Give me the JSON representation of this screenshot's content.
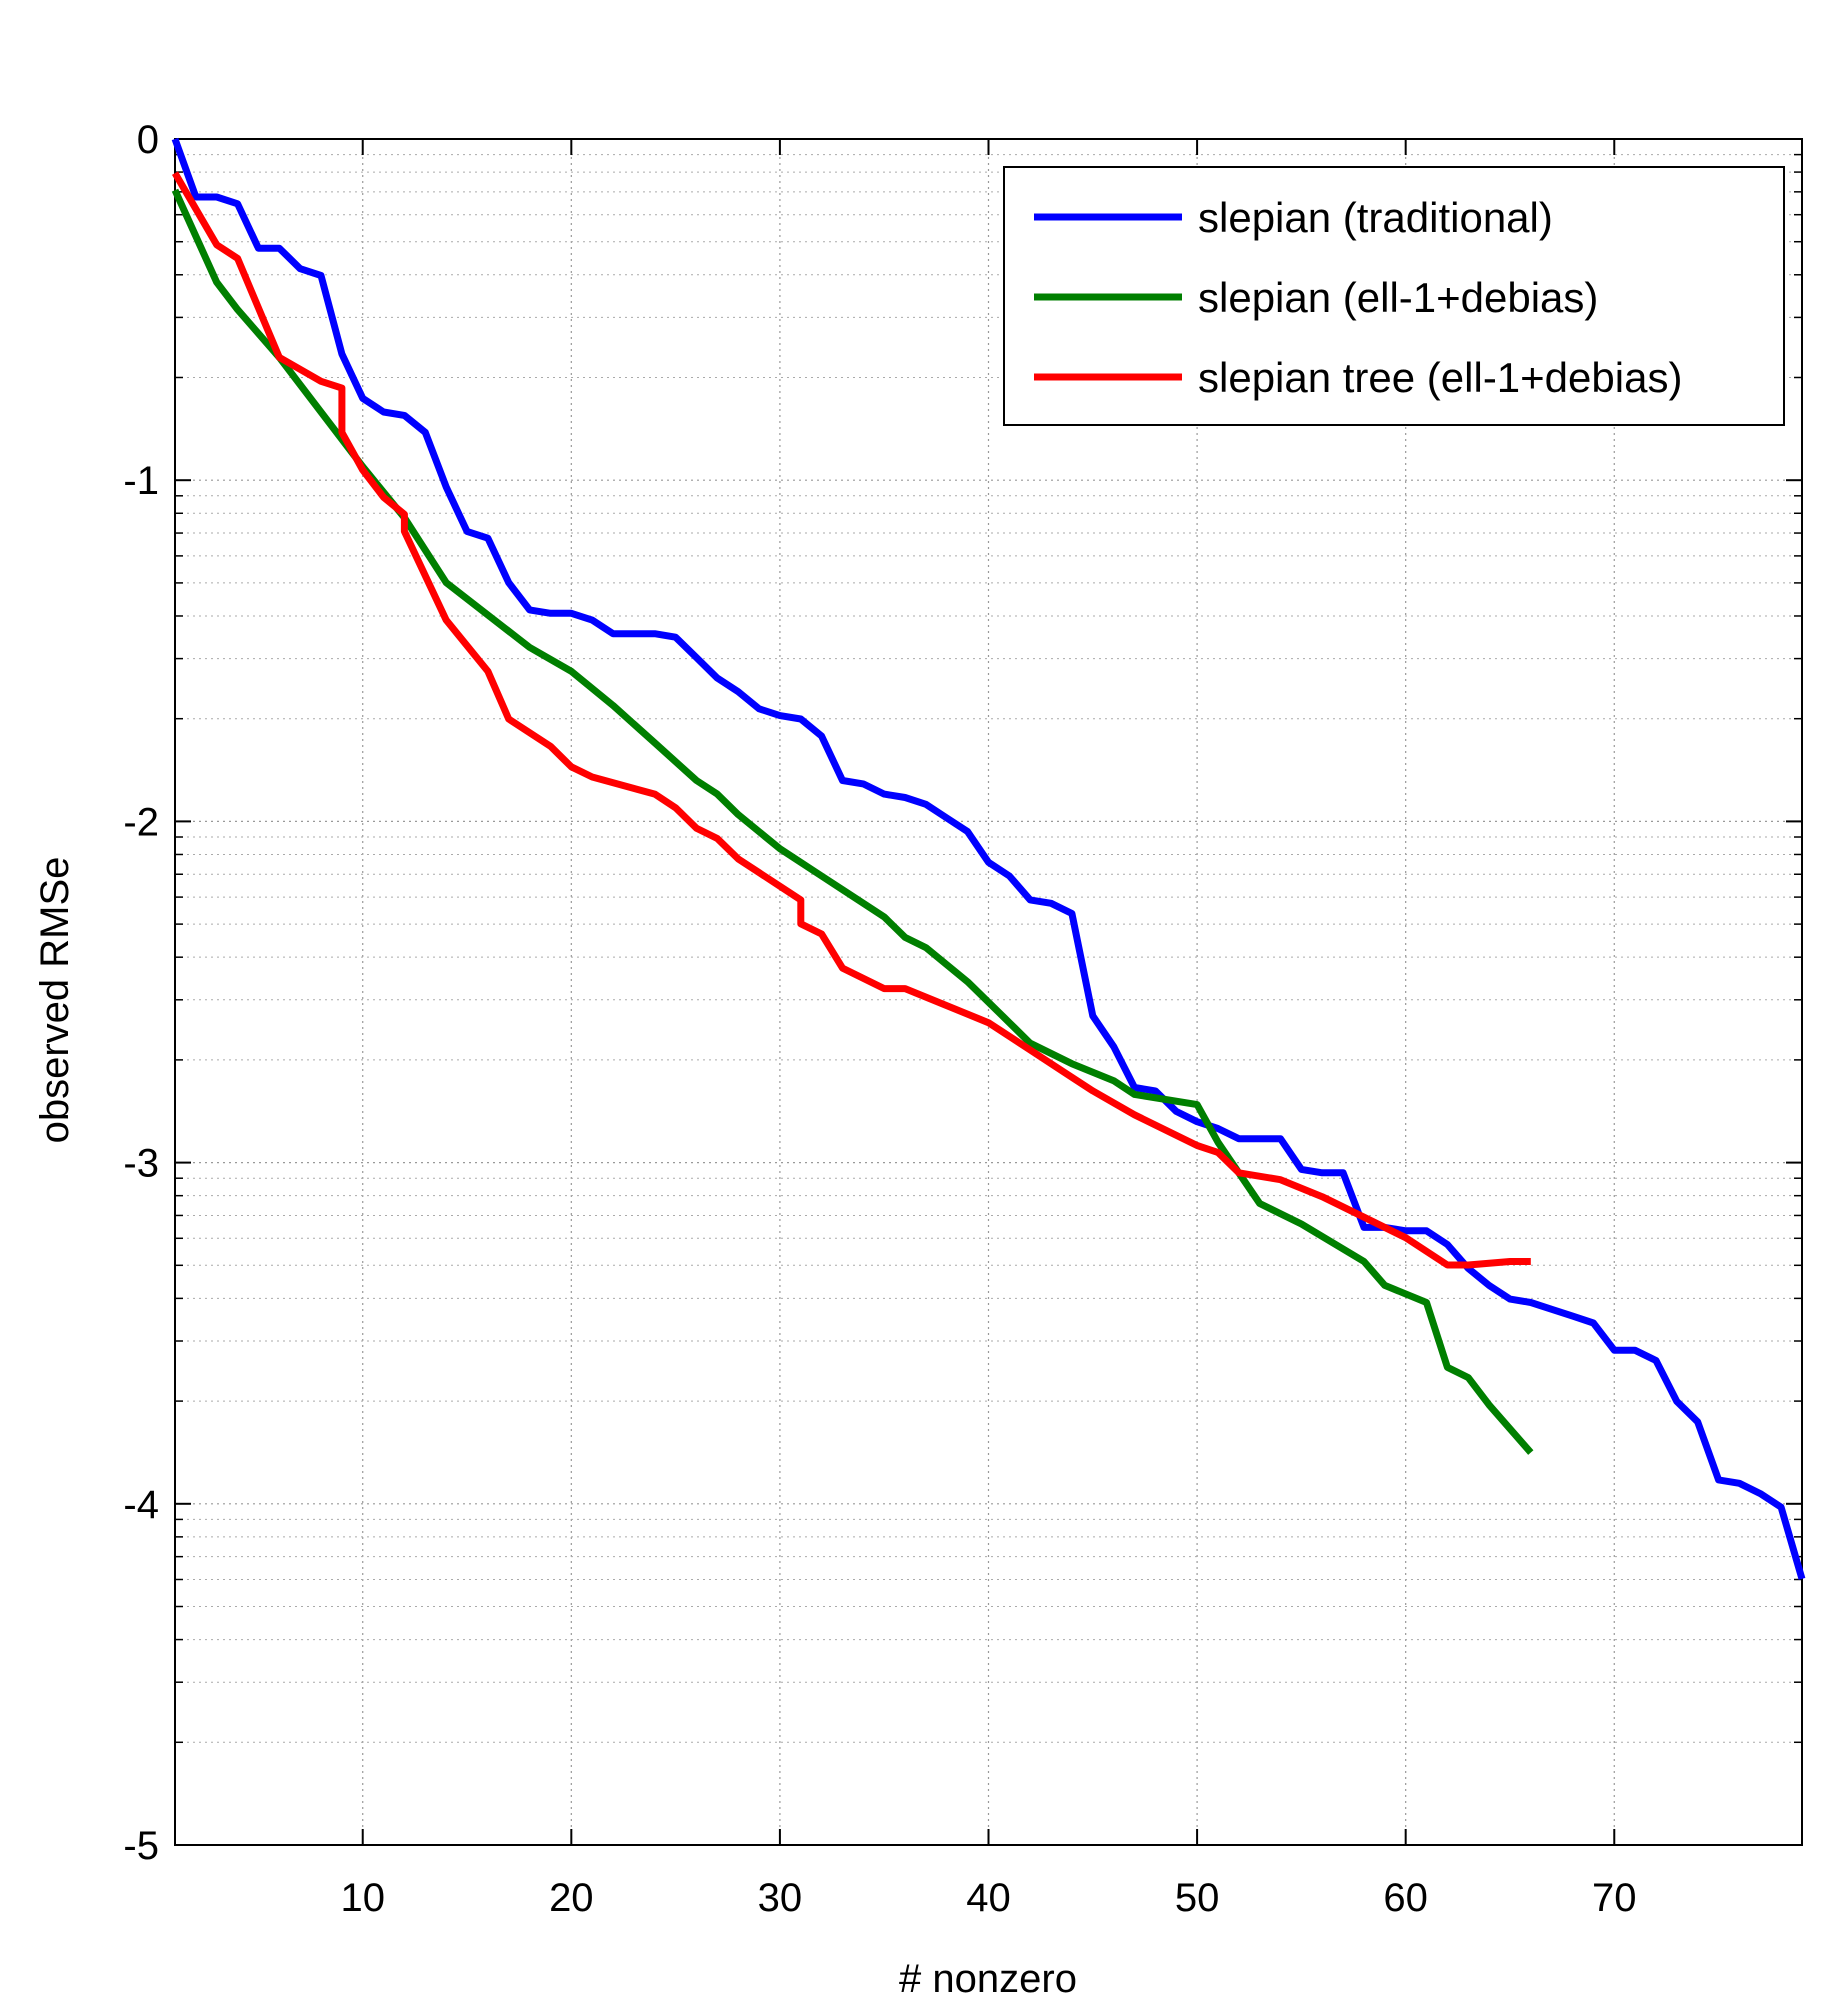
{
  "chart_data": {
    "type": "line",
    "title": "",
    "xlabel": "# nonzero",
    "ylabel": "observed RMSe",
    "xlim": [
      1,
      79
    ],
    "ylim": [
      -5,
      0
    ],
    "xticks": [
      10,
      20,
      30,
      40,
      50,
      60,
      70
    ],
    "yticks": [
      0,
      -1,
      -2,
      -3,
      -4,
      -5
    ],
    "y_scale": "log10",
    "grid": true,
    "legend_position": "top-right",
    "series": [
      {
        "name": "slepian (traditional)",
        "color": "#0000ff",
        "points": [
          [
            1,
            0
          ],
          [
            2,
            -0.17
          ],
          [
            3,
            -0.17
          ],
          [
            4,
            -0.19
          ],
          [
            5,
            -0.32
          ],
          [
            6,
            -0.32
          ],
          [
            7,
            -0.38
          ],
          [
            8,
            -0.4
          ],
          [
            9,
            -0.63
          ],
          [
            10,
            -0.76
          ],
          [
            11,
            -0.8
          ],
          [
            12,
            -0.81
          ],
          [
            13,
            -0.86
          ],
          [
            14,
            -1.02
          ],
          [
            15,
            -1.15
          ],
          [
            16,
            -1.17
          ],
          [
            17,
            -1.3
          ],
          [
            18,
            -1.38
          ],
          [
            19,
            -1.39
          ],
          [
            20,
            -1.39
          ],
          [
            21,
            -1.41
          ],
          [
            22,
            -1.45
          ],
          [
            23,
            -1.45
          ],
          [
            24,
            -1.45
          ],
          [
            25,
            -1.46
          ],
          [
            26,
            -1.52
          ],
          [
            27,
            -1.58
          ],
          [
            28,
            -1.62
          ],
          [
            29,
            -1.67
          ],
          [
            30,
            -1.69
          ],
          [
            31,
            -1.7
          ],
          [
            32,
            -1.75
          ],
          [
            33,
            -1.88
          ],
          [
            34,
            -1.89
          ],
          [
            35,
            -1.92
          ],
          [
            36,
            -1.93
          ],
          [
            37,
            -1.95
          ],
          [
            38,
            -1.99
          ],
          [
            39,
            -2.03
          ],
          [
            40,
            -2.12
          ],
          [
            41,
            -2.16
          ],
          [
            42,
            -2.23
          ],
          [
            43,
            -2.24
          ],
          [
            44,
            -2.27
          ],
          [
            45,
            -2.57
          ],
          [
            46,
            -2.66
          ],
          [
            47,
            -2.78
          ],
          [
            48,
            -2.79
          ],
          [
            49,
            -2.85
          ],
          [
            50,
            -2.88
          ],
          [
            51,
            -2.9
          ],
          [
            52,
            -2.93
          ],
          [
            53,
            -2.93
          ],
          [
            54,
            -2.93
          ],
          [
            55,
            -3.02
          ],
          [
            56,
            -3.03
          ],
          [
            57,
            -3.03
          ],
          [
            58,
            -3.19
          ],
          [
            59,
            -3.19
          ],
          [
            60,
            -3.2
          ],
          [
            61,
            -3.2
          ],
          [
            62,
            -3.24
          ],
          [
            63,
            -3.31
          ],
          [
            64,
            -3.36
          ],
          [
            65,
            -3.4
          ],
          [
            66,
            -3.41
          ],
          [
            67,
            -3.43
          ],
          [
            68,
            -3.45
          ],
          [
            69,
            -3.47
          ],
          [
            70,
            -3.55
          ],
          [
            71,
            -3.55
          ],
          [
            72,
            -3.58
          ],
          [
            73,
            -3.7
          ],
          [
            74,
            -3.76
          ],
          [
            75,
            -3.93
          ],
          [
            76,
            -3.94
          ],
          [
            77,
            -3.97
          ],
          [
            78,
            -4.01
          ],
          [
            79,
            -4.22
          ]
        ]
      },
      {
        "name": "slepian (ell-1+debias)",
        "color": "#007f00",
        "points": [
          [
            1,
            -0.15
          ],
          [
            3,
            -0.42
          ],
          [
            4,
            -0.5
          ],
          [
            6,
            -0.64
          ],
          [
            8,
            -0.8
          ],
          [
            10,
            -0.96
          ],
          [
            12,
            -1.11
          ],
          [
            14,
            -1.3
          ],
          [
            18,
            -1.49
          ],
          [
            20,
            -1.56
          ],
          [
            22,
            -1.66
          ],
          [
            24,
            -1.77
          ],
          [
            26,
            -1.88
          ],
          [
            27,
            -1.92
          ],
          [
            28,
            -1.98
          ],
          [
            30,
            -2.08
          ],
          [
            32,
            -2.16
          ],
          [
            35,
            -2.28
          ],
          [
            36,
            -2.34
          ],
          [
            37,
            -2.37
          ],
          [
            39,
            -2.47
          ],
          [
            41,
            -2.59
          ],
          [
            42,
            -2.65
          ],
          [
            44,
            -2.71
          ],
          [
            46,
            -2.76
          ],
          [
            47,
            -2.8
          ],
          [
            50,
            -2.83
          ],
          [
            51,
            -2.94
          ],
          [
            53,
            -3.12
          ],
          [
            55,
            -3.18
          ],
          [
            58,
            -3.29
          ],
          [
            59,
            -3.36
          ],
          [
            61,
            -3.41
          ],
          [
            62,
            -3.6
          ],
          [
            63,
            -3.63
          ],
          [
            64,
            -3.71
          ],
          [
            66,
            -3.85
          ]
        ]
      },
      {
        "name": "slepian tree (ell-1+debias)",
        "color": "#ff0000",
        "points": [
          [
            1,
            -0.1
          ],
          [
            3,
            -0.31
          ],
          [
            4,
            -0.35
          ],
          [
            6,
            -0.64
          ],
          [
            8,
            -0.71
          ],
          [
            9,
            -0.73
          ],
          [
            9,
            -0.86
          ],
          [
            10,
            -0.97
          ],
          [
            11,
            -1.05
          ],
          [
            12,
            -1.1
          ],
          [
            12,
            -1.15
          ],
          [
            14,
            -1.41
          ],
          [
            16,
            -1.56
          ],
          [
            17,
            -1.7
          ],
          [
            19,
            -1.78
          ],
          [
            20,
            -1.84
          ],
          [
            21,
            -1.87
          ],
          [
            24,
            -1.92
          ],
          [
            25,
            -1.96
          ],
          [
            26,
            -2.02
          ],
          [
            27,
            -2.05
          ],
          [
            28,
            -2.11
          ],
          [
            29,
            -2.15
          ],
          [
            31,
            -2.23
          ],
          [
            31,
            -2.3
          ],
          [
            32,
            -2.33
          ],
          [
            33,
            -2.43
          ],
          [
            35,
            -2.49
          ],
          [
            36,
            -2.49
          ],
          [
            40,
            -2.59
          ],
          [
            42,
            -2.67
          ],
          [
            44,
            -2.75
          ],
          [
            45,
            -2.79
          ],
          [
            47,
            -2.86
          ],
          [
            50,
            -2.95
          ],
          [
            51,
            -2.97
          ],
          [
            52,
            -3.03
          ],
          [
            54,
            -3.05
          ],
          [
            56,
            -3.1
          ],
          [
            58,
            -3.16
          ],
          [
            60,
            -3.22
          ],
          [
            62,
            -3.3
          ],
          [
            63,
            -3.3
          ],
          [
            65,
            -3.29
          ],
          [
            66,
            -3.29
          ]
        ]
      }
    ]
  }
}
